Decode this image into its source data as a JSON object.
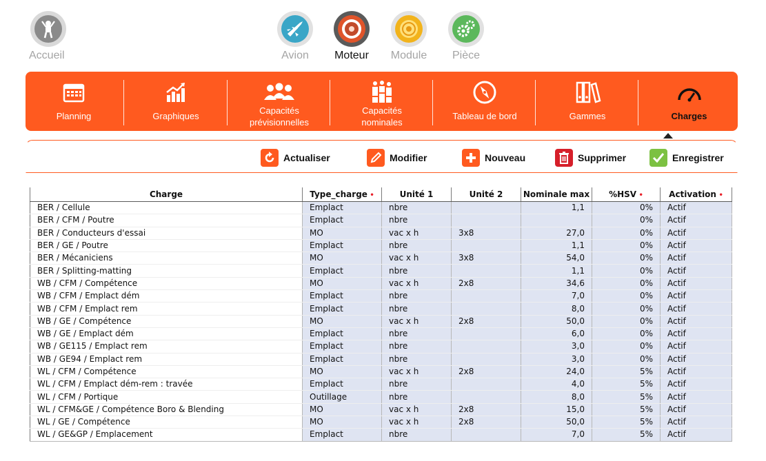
{
  "top_nav": {
    "home": {
      "label": "Accueil",
      "icon": "mechanic-icon"
    },
    "categories": [
      {
        "label": "Avion",
        "icon": "airplane-icon",
        "color": "#3aa6c7"
      },
      {
        "label": "Moteur",
        "icon": "engine-icon",
        "color": "#e0542a"
      },
      {
        "label": "Module",
        "icon": "fan-module-icon",
        "color": "#f2b31b"
      },
      {
        "label": "Pièce",
        "icon": "gears-icon",
        "color": "#5cb85c"
      }
    ],
    "active": "Moteur"
  },
  "modules": [
    {
      "label": "Planning",
      "icon": "calendar-icon"
    },
    {
      "label": "Graphiques",
      "icon": "bar-chart-icon"
    },
    {
      "label": "Capacités\nprévisionnelles",
      "icon": "people-group-icon"
    },
    {
      "label": "Capacités\nnominales",
      "icon": "people-stats-icon"
    },
    {
      "label": "Tableau de bord",
      "icon": "compass-icon"
    },
    {
      "label": "Gammes",
      "icon": "binders-icon"
    },
    {
      "label": "Charges",
      "icon": "gauge-icon"
    }
  ],
  "active_module": "Charges",
  "toolbar": [
    {
      "label": "Actualiser",
      "icon": "refresh-icon",
      "color": "#ff5a1f"
    },
    {
      "label": "Modifier",
      "icon": "pencil-icon",
      "color": "#ff5a1f"
    },
    {
      "label": "Nouveau",
      "icon": "plus-icon",
      "color": "#ff5a1f"
    },
    {
      "label": "Supprimer",
      "icon": "trash-icon",
      "color": "#d61f2a"
    },
    {
      "label": "Enregistrer",
      "icon": "check-icon",
      "color": "#7cc142"
    }
  ],
  "table": {
    "columns": [
      {
        "label": "Charge",
        "required": false
      },
      {
        "label": "Type_charge",
        "required": true
      },
      {
        "label": "Unité 1",
        "required": false
      },
      {
        "label": "Unité 2",
        "required": false
      },
      {
        "label": "Nominale max",
        "required": false
      },
      {
        "label": "%HSV",
        "required": true
      },
      {
        "label": "Activation",
        "required": true
      }
    ],
    "required_mark": "•",
    "rows": [
      [
        "BER / Cellule",
        "Emplact",
        "nbre",
        "",
        "1,1",
        "0%",
        "Actif"
      ],
      [
        "BER / CFM / Poutre",
        "Emplact",
        "nbre",
        "",
        "",
        "0%",
        "Actif"
      ],
      [
        "BER / Conducteurs d'essai",
        "MO",
        "vac x h",
        "3x8",
        "27,0",
        "0%",
        "Actif"
      ],
      [
        "BER / GE / Poutre",
        "Emplact",
        "nbre",
        "",
        "1,1",
        "0%",
        "Actif"
      ],
      [
        "BER / Mécaniciens",
        "MO",
        "vac x h",
        "3x8",
        "54,0",
        "0%",
        "Actif"
      ],
      [
        "BER / Splitting-matting",
        "Emplact",
        "nbre",
        "",
        "1,1",
        "0%",
        "Actif"
      ],
      [
        "WB / CFM / Compétence",
        "MO",
        "vac x h",
        "2x8",
        "34,6",
        "0%",
        "Actif"
      ],
      [
        "WB / CFM / Emplact dém",
        "Emplact",
        "nbre",
        "",
        "7,0",
        "0%",
        "Actif"
      ],
      [
        "WB / CFM / Emplact rem",
        "Emplact",
        "nbre",
        "",
        "8,0",
        "0%",
        "Actif"
      ],
      [
        "WB / GE / Compétence",
        "MO",
        "vac x h",
        "2x8",
        "50,0",
        "0%",
        "Actif"
      ],
      [
        "WB / GE / Emplact dém",
        "Emplact",
        "nbre",
        "",
        "6,0",
        "0%",
        "Actif"
      ],
      [
        "WB / GE115 / Emplact rem",
        "Emplact",
        "nbre",
        "",
        "3,0",
        "0%",
        "Actif"
      ],
      [
        "WB / GE94 / Emplact rem",
        "Emplact",
        "nbre",
        "",
        "3,0",
        "0%",
        "Actif"
      ],
      [
        "WL / CFM / Compétence",
        "MO",
        "vac x h",
        "2x8",
        "24,0",
        "5%",
        "Actif"
      ],
      [
        "WL / CFM / Emplact dém-rem : travée",
        "Emplact",
        "nbre",
        "",
        "4,0",
        "5%",
        "Actif"
      ],
      [
        "WL / CFM / Portique",
        "Outillage",
        "nbre",
        "",
        "8,0",
        "5%",
        "Actif"
      ],
      [
        "WL / CFM&GE / Compétence Boro & Blending",
        "MO",
        "vac x h",
        "2x8",
        "15,0",
        "5%",
        "Actif"
      ],
      [
        "WL / GE / Compétence",
        "MO",
        "vac x h",
        "2x8",
        "50,0",
        "5%",
        "Actif"
      ],
      [
        "WL / GE&GP / Emplacement",
        "Emplact",
        "nbre",
        "",
        "7,0",
        "5%",
        "Actif"
      ]
    ]
  }
}
